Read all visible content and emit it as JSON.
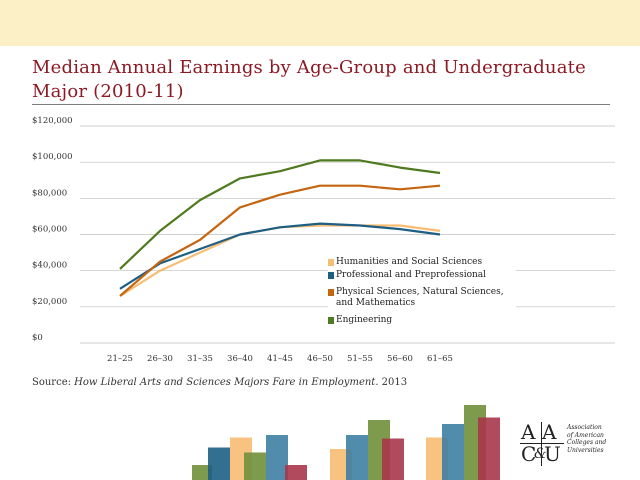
{
  "header": {
    "title": "Median Annual Earnings by Age-Group and Undergraduate Major (2010-11)"
  },
  "source": {
    "prefix": "Source: ",
    "title": "How Liberal Arts and Sciences Majors Fare in Employment",
    "suffix": ". 2013"
  },
  "logo": {
    "letters": [
      "A",
      "A",
      "C",
      "&",
      "U"
    ],
    "lines": [
      "Association",
      "of American",
      "Colleges and",
      "Universities"
    ]
  },
  "colors": {
    "humanities": "#f7bd73",
    "professional": "#1d5f85",
    "physical": "#c4650f",
    "engineering": "#4f7a1f",
    "grid": "#bfbfbf",
    "title": "#8c1a24"
  },
  "chart_data": {
    "type": "line",
    "title": "Median Annual Earnings by Age-Group and Undergraduate Major (2010-11)",
    "xlabel": "",
    "ylabel": "",
    "categories": [
      "21–25",
      "26–30",
      "31–35",
      "36–40",
      "41–45",
      "46–50",
      "51–55",
      "56–60",
      "61–65"
    ],
    "ylim": [
      0,
      120000
    ],
    "yticks": [
      0,
      20000,
      40000,
      60000,
      80000,
      100000,
      120000
    ],
    "ytick_labels": [
      "$0",
      "$20,000",
      "$40,000",
      "$60,000",
      "$80,000",
      "$100,000",
      "$120,000"
    ],
    "grid": true,
    "legend_position": "lower-right",
    "series": [
      {
        "name": "Humanities and Social Sciences",
        "color": "#f7bd73",
        "values": [
          26000,
          40000,
          50000,
          60000,
          64000,
          65000,
          65000,
          65000,
          62000
        ]
      },
      {
        "name": "Professional and Preprofessional",
        "color": "#1d5f85",
        "values": [
          30000,
          44000,
          52000,
          60000,
          64000,
          66000,
          65000,
          63000,
          60000
        ]
      },
      {
        "name": "Physical Sciences, Natural Sciences, and Mathematics",
        "color": "#c4650f",
        "values": [
          26000,
          45000,
          57000,
          75000,
          82000,
          87000,
          87000,
          85000,
          87000
        ]
      },
      {
        "name": "Engineering",
        "color": "#4f7a1f",
        "values": [
          41000,
          62000,
          79000,
          91000,
          95000,
          101000,
          101000,
          97000,
          94000
        ]
      }
    ]
  },
  "decor_bars": [
    {
      "color": "#6f8f3a",
      "level": 0.3
    },
    {
      "color": "#1d5f85",
      "level": 0.65
    },
    {
      "color": "#f7bd73",
      "level": 0.85
    },
    {
      "color": "#6f8f3a",
      "level": 0.55
    },
    {
      "color": "#3f7fa3",
      "level": 0.9
    },
    {
      "color": "#a8364a",
      "level": 0.3
    },
    {
      "color": "#f7bd73",
      "level": 0.62
    },
    {
      "color": "#3f7fa3",
      "level": 0.9
    },
    {
      "color": "#6f8f3a",
      "level": 1.2
    },
    {
      "color": "#a8364a",
      "level": 0.83
    },
    {
      "color": "#f7bd73",
      "level": 0.85
    },
    {
      "color": "#3f7fa3",
      "level": 1.12
    },
    {
      "color": "#6f8f3a",
      "level": 1.5
    },
    {
      "color": "#a8364a",
      "level": 1.25
    }
  ]
}
